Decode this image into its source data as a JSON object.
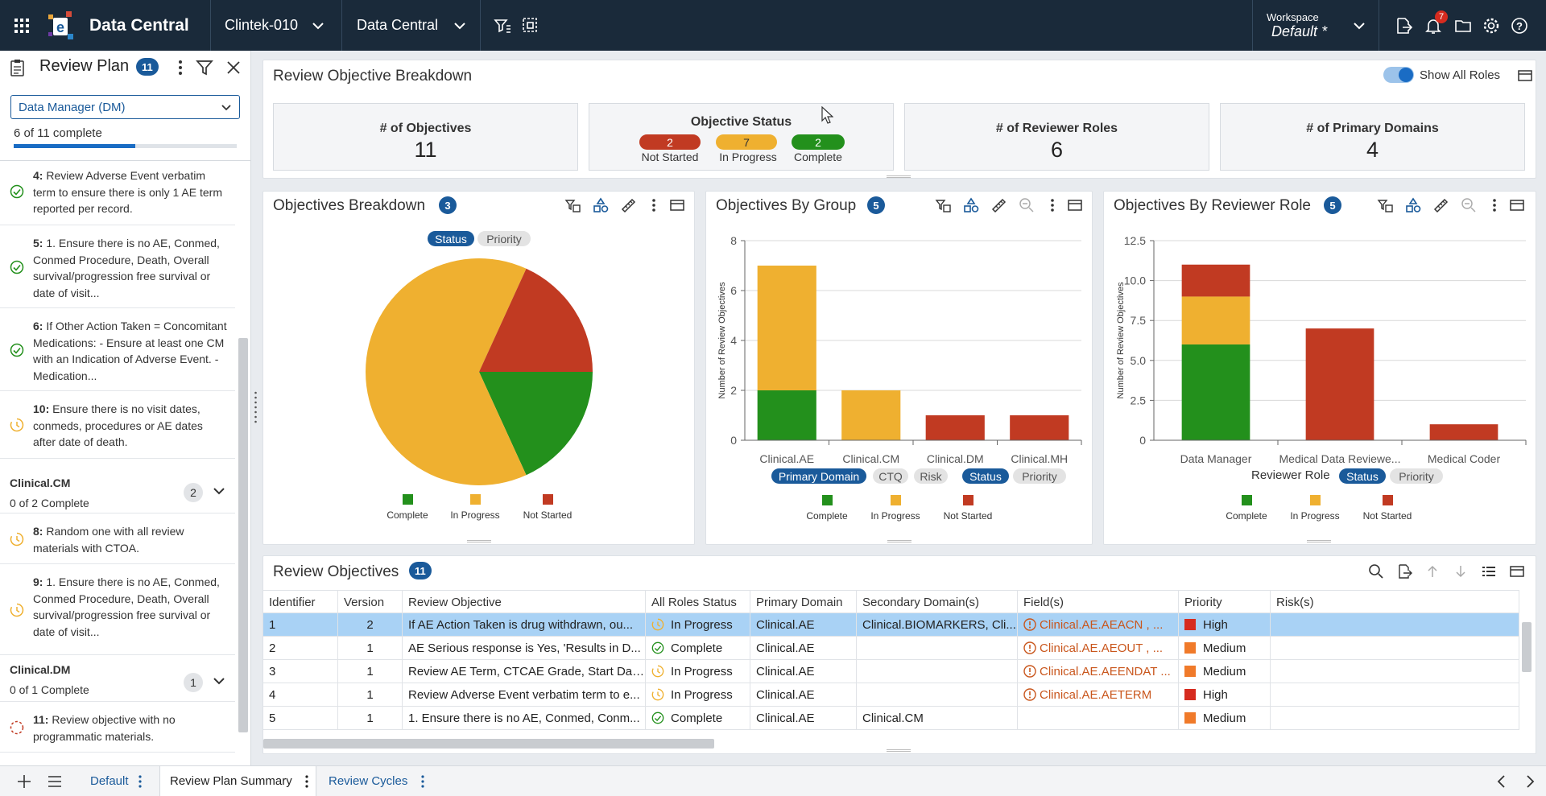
{
  "topbar": {
    "app_name": "Data Central",
    "study": "Clintek-010",
    "module": "Data Central",
    "workspace_label": "Workspace",
    "workspace_value": "Default",
    "workspace_modified": "*",
    "notification_count": "7"
  },
  "sidebar": {
    "title": "Review Plan",
    "count": "11",
    "role": "Data Manager (DM)",
    "progress_text": "6 of 11 complete",
    "progress_fraction": 0.545,
    "items": [
      {
        "num": "4:",
        "text": " Review Adverse Event verbatim term to ensure there is only 1 AE term reported per record.",
        "status": "complete"
      },
      {
        "num": "5:",
        "text": " 1. Ensure there is no AE, Conmed, Conmed Procedure, Death, Overall survival/progression free survival or date of visit...",
        "status": "complete"
      },
      {
        "num": "6:",
        "text": " If Other Action Taken = Concomitant Medications: - Ensure at least one CM with an Indication of Adverse Event. - Medication...",
        "status": "complete"
      },
      {
        "num": "10:",
        "text": " Ensure there is no visit dates, conmeds, procedures or AE dates after date of death.",
        "status": "inprogress"
      }
    ],
    "group_cm": {
      "name": "Clinical.CM",
      "sub": "0 of 2 Complete",
      "count": "2"
    },
    "cm_items": [
      {
        "num": "8:",
        "text": " Random one with all review materials with CTOA.",
        "status": "inprogress"
      },
      {
        "num": "9:",
        "text": " 1. Ensure there is no AE, Conmed, Conmed Procedure, Death, Overall survival/progression free survival or date of visit...",
        "status": "inprogress"
      }
    ],
    "group_dm": {
      "name": "Clinical.DM",
      "sub": "0 of 1 Complete",
      "count": "1"
    },
    "dm_items": [
      {
        "num": "11:",
        "text": " Review objective with no programmatic materials.",
        "status": "notstarted"
      }
    ]
  },
  "breakdown": {
    "title": "Review Objective Breakdown",
    "toggle_label": "Show All Roles",
    "kpis": {
      "objectives_label": "# of Objectives",
      "objectives_value": "11",
      "status_label": "Objective Status",
      "not_started_value": "2",
      "not_started_label": "Not Started",
      "in_progress_value": "7",
      "in_progress_label": "In Progress",
      "complete_value": "2",
      "complete_label": "Complete",
      "roles_label": "# of Reviewer Roles",
      "roles_value": "6",
      "domains_label": "# of Primary Domains",
      "domains_value": "4"
    }
  },
  "colors": {
    "complete": "#23901c",
    "in_progress": "#efb030",
    "not_started": "#c13a22",
    "accent": "#1a5a9a"
  },
  "legend": {
    "complete": "Complete",
    "in_progress": "In Progress",
    "not_started": "Not Started"
  },
  "charts": {
    "breakdown": {
      "title": "Objectives Breakdown",
      "count": "3",
      "pill_status": "Status",
      "pill_priority": "Priority"
    },
    "group": {
      "title": "Objectives By Group",
      "count": "5",
      "ylabel": "Number of Review Objectives",
      "pill_domain": "Primary Domain",
      "pill_ctq": "CTQ",
      "pill_risk": "Risk",
      "pill_status": "Status",
      "pill_priority": "Priority"
    },
    "role": {
      "title": "Objectives By Reviewer Role",
      "count": "5",
      "ylabel": "Number of Review Objectives",
      "xlabel": "Reviewer Role",
      "pill_status": "Status",
      "pill_priority": "Priority"
    }
  },
  "chart_data": [
    {
      "type": "pie",
      "title": "Objectives Breakdown",
      "labels": [
        "Complete",
        "In Progress",
        "Not Started"
      ],
      "values": [
        2,
        7,
        2
      ]
    },
    {
      "type": "bar",
      "stacked": true,
      "title": "Objectives By Group",
      "ylabel": "Number of Review Objectives",
      "categories": [
        "Clinical.AE",
        "Clinical.CM",
        "Clinical.DM",
        "Clinical.MH"
      ],
      "yticks": [
        "0",
        "2",
        "4",
        "6",
        "8"
      ],
      "ylim": [
        0,
        8
      ],
      "series": [
        {
          "name": "Complete",
          "values": [
            2,
            0,
            0,
            0
          ]
        },
        {
          "name": "In Progress",
          "values": [
            5,
            2,
            0,
            0
          ]
        },
        {
          "name": "Not Started",
          "values": [
            0,
            0,
            1,
            1
          ]
        }
      ]
    },
    {
      "type": "bar",
      "stacked": true,
      "title": "Objectives By Reviewer Role",
      "ylabel": "Number of Review Objectives",
      "xlabel": "Reviewer Role",
      "categories": [
        "Data Manager",
        "Medical Data Reviewe...",
        "Medical Coder"
      ],
      "yticks": [
        "0",
        "2.5",
        "5.0",
        "7.5",
        "10.0",
        "12.5"
      ],
      "ylim": [
        0,
        12.5
      ],
      "series": [
        {
          "name": "Complete",
          "values": [
            6,
            0,
            0
          ]
        },
        {
          "name": "In Progress",
          "values": [
            3,
            0,
            0
          ]
        },
        {
          "name": "Not Started",
          "values": [
            2,
            7,
            1
          ]
        }
      ]
    }
  ],
  "objectives": {
    "title": "Review Objectives",
    "count": "11",
    "columns": [
      "Identifier",
      "Version",
      "Review Objective",
      "All Roles Status",
      "Primary Domain",
      "Secondary Domain(s)",
      "Field(s)",
      "Priority",
      "Risk(s)"
    ],
    "rows": [
      {
        "id": "1",
        "version": "2",
        "objective": "If AE Action Taken is drug withdrawn, ou...",
        "status": "In Progress",
        "status_key": "inprogress",
        "primary": "Clinical.AE",
        "secondary": "Clinical.BIOMARKERS, Cli...",
        "fields": "Clinical.AE.AEACN , ...",
        "priority": "High",
        "priority_color": "#d62b1f",
        "risks": "",
        "selected": true
      },
      {
        "id": "2",
        "version": "1",
        "objective": "AE Serious response is Yes, 'Results in D...",
        "status": "Complete",
        "status_key": "complete",
        "primary": "Clinical.AE",
        "secondary": "",
        "fields": "Clinical.AE.AEOUT , ...",
        "priority": "Medium",
        "priority_color": "#f07a2a",
        "risks": ""
      },
      {
        "id": "3",
        "version": "1",
        "objective": "Review AE Term, CTCAE Grade, Start Dat...",
        "status": "In Progress",
        "status_key": "inprogress",
        "primary": "Clinical.AE",
        "secondary": "",
        "fields": "Clinical.AE.AEENDAT ...",
        "priority": "Medium",
        "priority_color": "#f07a2a",
        "risks": ""
      },
      {
        "id": "4",
        "version": "1",
        "objective": "Review Adverse Event verbatim term to e...",
        "status": "In Progress",
        "status_key": "inprogress",
        "primary": "Clinical.AE",
        "secondary": "",
        "fields": "Clinical.AE.AETERM",
        "priority": "High",
        "priority_color": "#d62b1f",
        "risks": ""
      },
      {
        "id": "5",
        "version": "1",
        "objective": "1. Ensure there is no AE, Conmed, Conm...",
        "status": "Complete",
        "status_key": "complete",
        "primary": "Clinical.AE",
        "secondary": "Clinical.CM",
        "fields": "",
        "priority": "Medium",
        "priority_color": "#f07a2a",
        "risks": ""
      }
    ]
  },
  "tabs": [
    {
      "label": "Default",
      "active": false
    },
    {
      "label": "Review Plan Summary",
      "active": true
    },
    {
      "label": "Review Cycles",
      "active": false
    }
  ]
}
